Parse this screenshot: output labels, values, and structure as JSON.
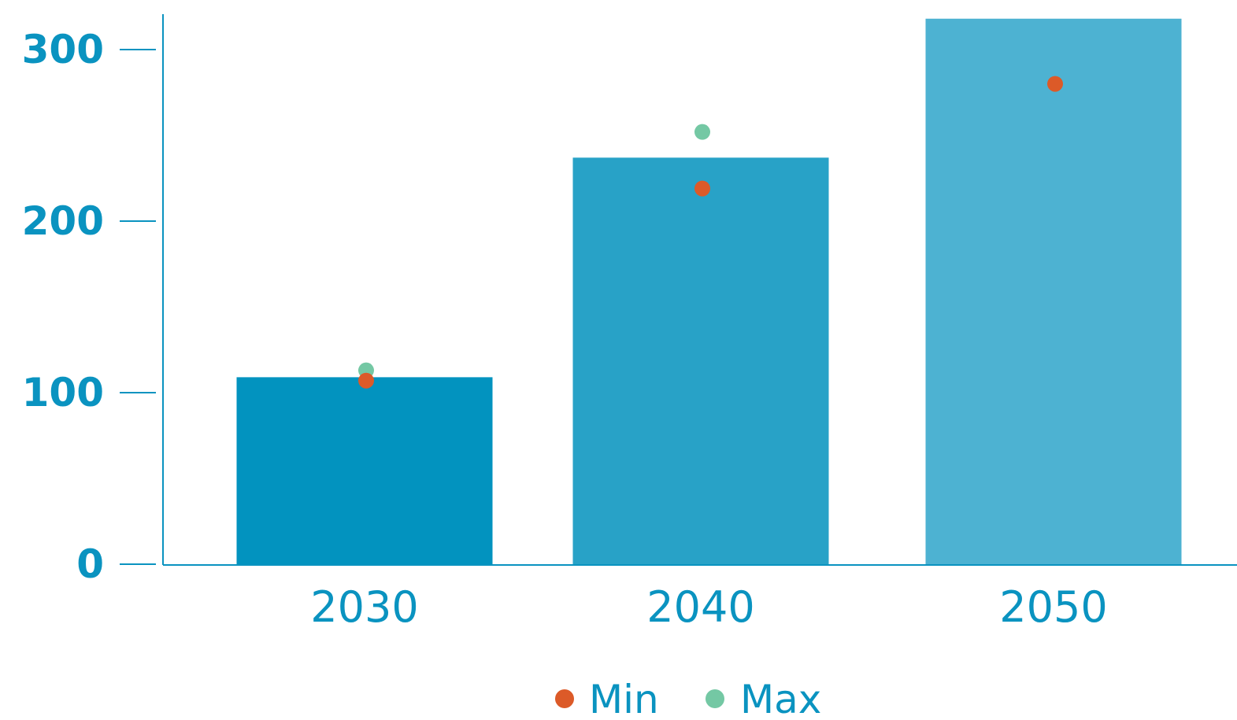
{
  "colors": {
    "axis": "#0a93c0",
    "text": "#0a93c0",
    "bars": [
      "#0293bf",
      "#28a2c7",
      "#4db2d2"
    ],
    "min": "#dc5a28",
    "max": "#74c8a4"
  },
  "chart_data": {
    "type": "bar",
    "categories": [
      "2030",
      "2040",
      "2050"
    ],
    "values": [
      109,
      237,
      318
    ],
    "series": [
      {
        "name": "Min",
        "values": [
          107,
          219,
          280
        ]
      },
      {
        "name": "Max",
        "values": [
          113,
          252,
          null
        ]
      }
    ],
    "ylim": [
      0,
      320
    ],
    "yticks": [
      "0",
      "100",
      "200",
      "300"
    ],
    "grid": false,
    "legend": {
      "position": "bottom-center",
      "items": [
        {
          "label": "Min",
          "marker": "circle"
        },
        {
          "label": "Max",
          "marker": "circle"
        }
      ]
    }
  }
}
